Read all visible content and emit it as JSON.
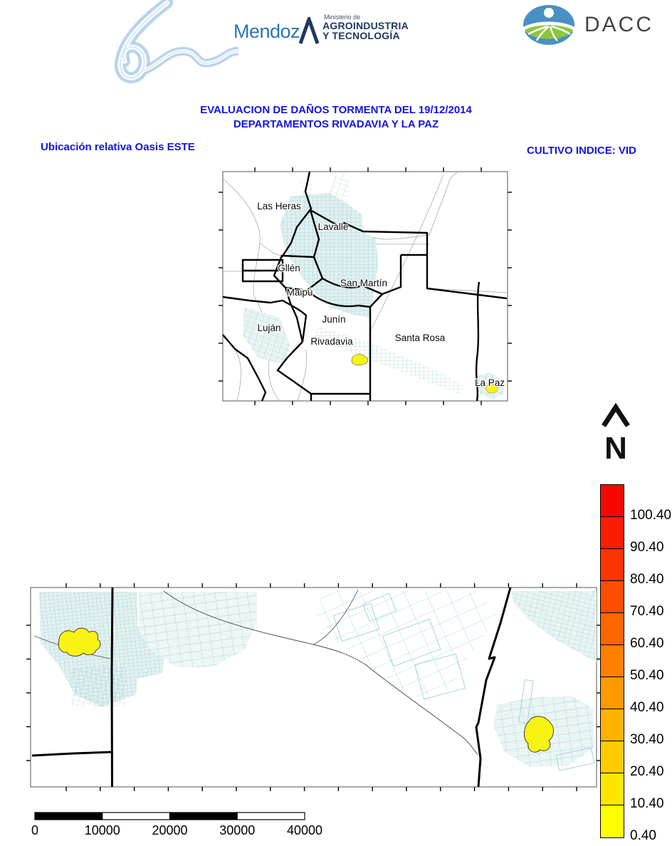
{
  "header": {
    "mendoza_brand": "Mendoz",
    "mendoza_a_letter": "A",
    "ministry": {
      "line1": "Ministerio de",
      "line2": "AGROINDUSTRIA",
      "line3": "Y TECNOLOGÍA"
    },
    "dacc_label": "DACC"
  },
  "title": {
    "line1": "EVALUACION DE DAÑOS TORMENTA DEL 19/12/2014",
    "line2": "DEPARTAMENTOS RIVADAVIA Y LA PAZ"
  },
  "left_caption": "Ubicación relativa Oasis ESTE",
  "right_caption": "CULTIVO INDICE: VID",
  "overview_map": {
    "departments": {
      "las_heras": "Las Heras",
      "lavalle": "Lavalle",
      "guaymallen": "Gllén",
      "maipu": "Maipú",
      "san_martin": "San Martín",
      "junin": "Junín",
      "lujan": "Luján",
      "rivadavia": "Rivadavia",
      "santa_rosa": "Santa Rosa",
      "la_paz": "La Paz"
    }
  },
  "north_label": "N",
  "legend": {
    "values": [
      "100.40",
      "90.40",
      "80.40",
      "70.40",
      "60.40",
      "50.40",
      "40.40",
      "30.40",
      "20.40",
      "10.40",
      "0.40"
    ],
    "colors": [
      "#F50800",
      "#F91E00",
      "#FC3500",
      "#FF4D00",
      "#FF6600",
      "#FF8000",
      "#FF9900",
      "#FFB300",
      "#FFCC00",
      "#FFE600",
      "#FFFF00"
    ]
  },
  "scale_bar": {
    "labels": [
      "0",
      "10000",
      "20000",
      "30000",
      "40000"
    ]
  },
  "palette": {
    "title_blue": "#1414E6",
    "parcel_teal": "#8FC5C5",
    "damage_yellow": "#F8F412",
    "brand_blue": "#2E74B5",
    "navy": "#1F3864",
    "dacc_green": "#8DC63F",
    "dacc_blue": "#4A90C4"
  }
}
